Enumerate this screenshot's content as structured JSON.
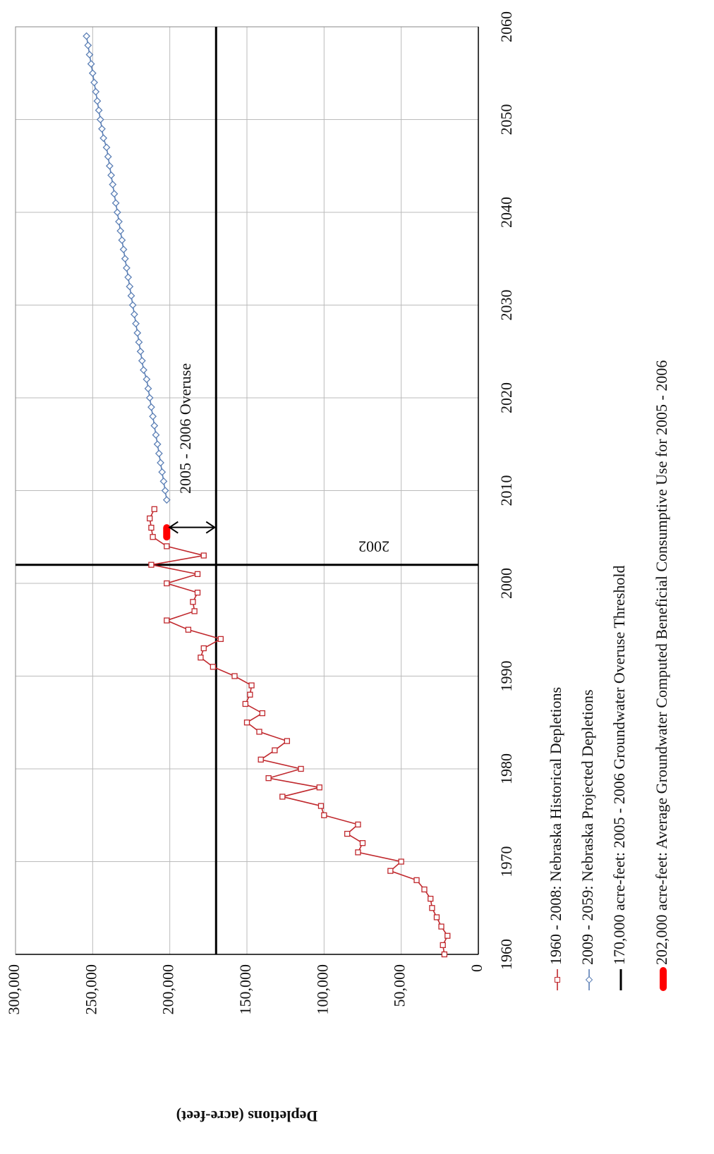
{
  "chart_data": {
    "type": "line",
    "y_label": "Depletions (acre-feet)",
    "xlim": [
      1960,
      2060
    ],
    "xticks": [
      1960,
      1970,
      1980,
      1990,
      2000,
      2010,
      2020,
      2030,
      2040,
      2050,
      2060
    ],
    "ylim": [
      0,
      300000
    ],
    "yticks": [
      0,
      {
        "value": 50000,
        "label": "50,000"
      },
      {
        "value": 100000,
        "label": "100,000"
      },
      {
        "value": 150000,
        "label": "150,000"
      },
      {
        "value": 200000,
        "label": "200,000"
      },
      {
        "value": 250000,
        "label": "250,000"
      },
      {
        "value": 300000,
        "label": "300,000"
      }
    ],
    "grid": true,
    "series": [
      {
        "name": "1960 - 2008:  Nebraska Historical Depletions",
        "color": "#c0282d",
        "marker": "square",
        "x": [
          1960,
          1961,
          1962,
          1963,
          1964,
          1965,
          1966,
          1967,
          1968,
          1969,
          1970,
          1971,
          1972,
          1973,
          1974,
          1975,
          1976,
          1977,
          1978,
          1979,
          1980,
          1981,
          1982,
          1983,
          1984,
          1985,
          1986,
          1987,
          1988,
          1989,
          1990,
          1991,
          1992,
          1993,
          1994,
          1995,
          1996,
          1997,
          1998,
          1999,
          2000,
          2001,
          2002,
          2003,
          2004,
          2005,
          2006,
          2007,
          2008
        ],
        "values": [
          22000,
          23000,
          20000,
          24000,
          27000,
          30000,
          31000,
          35000,
          40000,
          57000,
          50000,
          78000,
          75000,
          85000,
          78000,
          100000,
          102000,
          127000,
          103000,
          136000,
          115000,
          141000,
          132000,
          124000,
          142000,
          150000,
          140000,
          151000,
          148000,
          147000,
          158000,
          172000,
          180000,
          178000,
          167000,
          188000,
          202000,
          184000,
          185000,
          182000,
          202000,
          182000,
          212000,
          178000,
          202000,
          211000,
          212000,
          213000,
          210000
        ]
      },
      {
        "name": "2009 - 2059:  Nebraska Projected Depletions",
        "color": "#5b7fb5",
        "marker": "diamond",
        "x": [
          2009,
          2010,
          2011,
          2012,
          2013,
          2014,
          2015,
          2016,
          2017,
          2018,
          2019,
          2020,
          2021,
          2022,
          2023,
          2024,
          2025,
          2026,
          2027,
          2028,
          2029,
          2030,
          2031,
          2032,
          2033,
          2034,
          2035,
          2036,
          2037,
          2038,
          2039,
          2040,
          2041,
          2042,
          2043,
          2044,
          2045,
          2046,
          2047,
          2048,
          2049,
          2050,
          2051,
          2052,
          2053,
          2054,
          2055,
          2056,
          2057,
          2058,
          2059
        ],
        "values": [
          202000,
          203000,
          204000,
          205000,
          206000,
          207000,
          208000,
          209000,
          210000,
          211000,
          212000,
          213000,
          214000,
          215000,
          217000,
          218000,
          219000,
          220000,
          221000,
          222000,
          223000,
          224000,
          225000,
          226000,
          227000,
          228000,
          229000,
          230000,
          231000,
          232000,
          233000,
          234000,
          235000,
          236000,
          237000,
          238000,
          239000,
          240000,
          241000,
          243000,
          244000,
          245000,
          246000,
          247000,
          248000,
          249000,
          250000,
          251000,
          252000,
          253000,
          254000
        ]
      }
    ],
    "threshold": {
      "name": "170,000 acre-feet:  2005 - 2006 Groundwater Overuse Threshold",
      "value": 170000,
      "color": "#000000"
    },
    "overuse": {
      "name": "202,000 acre-feet:  Average Groundwater Computed Beneficial Consumptive Use for 2005 - 2006",
      "x": [
        2005,
        2006
      ],
      "value": 202000,
      "color": "#ff0000"
    },
    "vline": {
      "x": 2002,
      "label": "2002"
    },
    "annotation": "2005 - 2006  Overuse"
  }
}
